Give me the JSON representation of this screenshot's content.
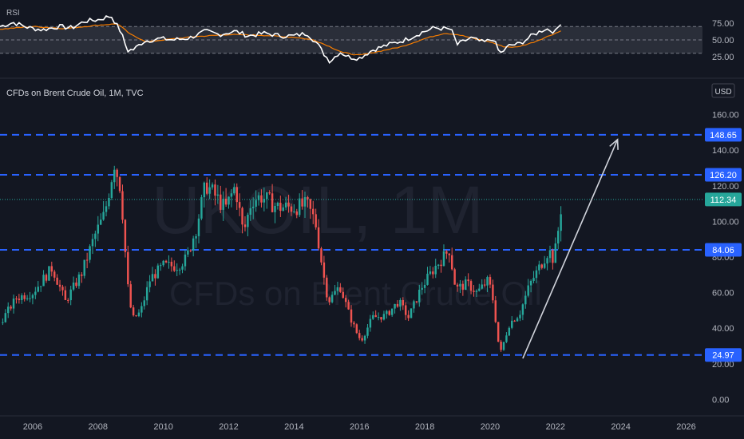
{
  "symbol_title": "CFDs on Brent Crude Oil, 1M, TVC",
  "watermark": {
    "ticker": "UKOIL, 1M",
    "name": "CFDs on Brent Crude Oil"
  },
  "currency_badge": "USD",
  "colors": {
    "background": "#131722",
    "up": "#26a69a",
    "down": "#ef5350",
    "hline": "#2962ff",
    "rsi": "#ffffff",
    "rsi_ma": "#f57c00",
    "rsi_band": "#2a2e39",
    "price_badge": "#26a69a",
    "level_badge": "#2962ff",
    "arrow": "#d1d4dc"
  },
  "chart_data": [
    {
      "type": "candlestick",
      "title": "CFDs on Brent Crude Oil, 1M, TVC",
      "x_ticks": [
        "2006",
        "2008",
        "2010",
        "2012",
        "2014",
        "2016",
        "2018",
        "2020",
        "2022",
        "2024",
        "2026"
      ],
      "y_ticks": [
        "0.00",
        "20.00",
        "40.00",
        "60.00",
        "80.00",
        "100.00",
        "120.00",
        "140.00",
        "160.00"
      ],
      "ylim": [
        -7,
        167
      ],
      "xlim": [
        2005.0,
        2026.5
      ],
      "last_price": "112.34",
      "horizontal_levels": [
        {
          "label": "148.65",
          "value": 148.65
        },
        {
          "label": "126.20",
          "value": 126.2
        },
        {
          "label": "84.06",
          "value": 84.06
        },
        {
          "label": "24.97",
          "value": 24.97
        }
      ],
      "arrow": {
        "from": [
          2021.0,
          23
        ],
        "to": [
          2023.9,
          146
        ]
      },
      "series": [
        {
          "t": [
            2005.0,
            2005.5,
            2006.0,
            2006.6,
            2007.0,
            2007.5,
            2007.9,
            2008.2,
            2008.5,
            2008.7,
            2008.9,
            2009.05,
            2009.3,
            2009.6,
            2010.0,
            2010.4,
            2010.7,
            2011.0,
            2011.3,
            2011.6,
            2011.9,
            2012.2,
            2012.45,
            2012.7,
            2013.0,
            2013.5,
            2014.0,
            2014.4,
            2014.65,
            2014.9,
            2015.05,
            2015.4,
            2015.7,
            2015.9,
            2016.05,
            2016.4,
            2016.8,
            2017.2,
            2017.5,
            2017.9,
            2018.3,
            2018.75,
            2018.95,
            2019.3,
            2019.6,
            2019.95,
            2020.1,
            2020.3,
            2020.6,
            2020.9,
            2021.2,
            2021.5,
            2021.8,
            2021.95,
            2022.1,
            2022.2
          ],
          "price": [
            43,
            57,
            60,
            74,
            55,
            71,
            92,
            104,
            133,
            118,
            65,
            45,
            49,
            68,
            75,
            75,
            79,
            96,
            121,
            114,
            107,
            120,
            93,
            112,
            114,
            108,
            108,
            109,
            100,
            70,
            55,
            64,
            47,
            38,
            33,
            46,
            47,
            55,
            46,
            63,
            74,
            84,
            62,
            65,
            60,
            67,
            55,
            25,
            43,
            48,
            64,
            74,
            84,
            78,
            97,
            112
          ]
        },
        {
          "name": "RSI",
          "range": [
            0,
            100
          ],
          "ticks": [
            "75.00",
            "50.00",
            "25.00"
          ],
          "bands": [
            70,
            50,
            30
          ],
          "t": [
            2005.0,
            2005.4,
            2005.9,
            2006.3,
            2006.8,
            2007.2,
            2007.6,
            2008.0,
            2008.4,
            2008.7,
            2008.9,
            2009.1,
            2009.4,
            2009.9,
            2010.3,
            2010.8,
            2011.3,
            2011.7,
            2012.2,
            2012.6,
            2013.1,
            2013.6,
            2014.0,
            2014.4,
            2014.7,
            2014.9,
            2015.1,
            2015.4,
            2015.7,
            2016.0,
            2016.4,
            2016.9,
            2017.4,
            2017.9,
            2018.3,
            2018.8,
            2019.0,
            2019.4,
            2019.8,
            2020.1,
            2020.3,
            2020.6,
            2020.9,
            2021.3,
            2021.7,
            2022.0,
            2022.2
          ],
          "values": [
            70,
            76,
            68,
            65,
            70,
            68,
            78,
            80,
            86,
            62,
            34,
            36,
            48,
            52,
            50,
            53,
            63,
            58,
            63,
            56,
            60,
            56,
            56,
            60,
            45,
            30,
            18,
            32,
            24,
            23,
            35,
            43,
            50,
            61,
            68,
            66,
            43,
            53,
            46,
            52,
            29,
            42,
            44,
            57,
            67,
            62,
            79
          ]
        },
        {
          "name": "RSI MA",
          "t": [
            2005.0,
            2006.0,
            2007.0,
            2008.0,
            2008.6,
            2009.0,
            2009.5,
            2010.0,
            2011.0,
            2012.0,
            2013.0,
            2014.0,
            2014.6,
            2015.0,
            2015.5,
            2016.0,
            2016.6,
            2017.3,
            2018.0,
            2018.6,
            2019.0,
            2019.6,
            2020.0,
            2020.4,
            2020.8,
            2021.3,
            2021.8,
            2022.2
          ],
          "values": [
            66,
            70,
            67,
            72,
            74,
            58,
            47,
            50,
            55,
            58,
            57,
            54,
            50,
            42,
            31,
            27,
            33,
            40,
            52,
            60,
            58,
            51,
            47,
            40,
            39,
            46,
            56,
            64
          ]
        }
      ]
    }
  ]
}
